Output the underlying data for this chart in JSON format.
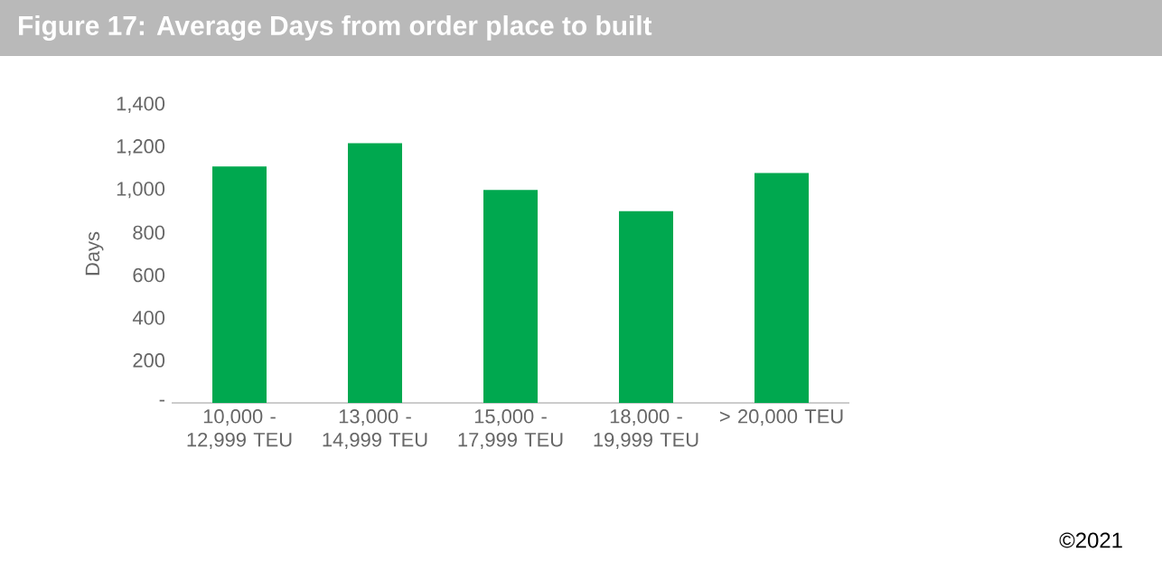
{
  "chart_data": {
    "type": "bar",
    "title": "Figure 17: Average Days from order place to built",
    "ylabel": "Days",
    "categories": [
      "10,000 - 12,999 TEU",
      "13,000 - 14,999 TEU",
      "15,000 - 17,999 TEU",
      "18,000 - 19,999 TEU",
      "> 20,000 TEU"
    ],
    "values": [
      1110,
      1220,
      1000,
      900,
      1080
    ],
    "color": "#00a84f",
    "ylim": [
      0,
      1400
    ],
    "yticks": [
      {
        "value": 0,
        "label": "-"
      },
      200,
      400,
      600,
      800,
      {
        "value": 1000,
        "label": "1,000"
      },
      {
        "value": 1200,
        "label": "1,200"
      },
      {
        "value": 1400,
        "label": "1,400"
      }
    ],
    "grid": false,
    "annotations": [
      "©2021"
    ]
  }
}
